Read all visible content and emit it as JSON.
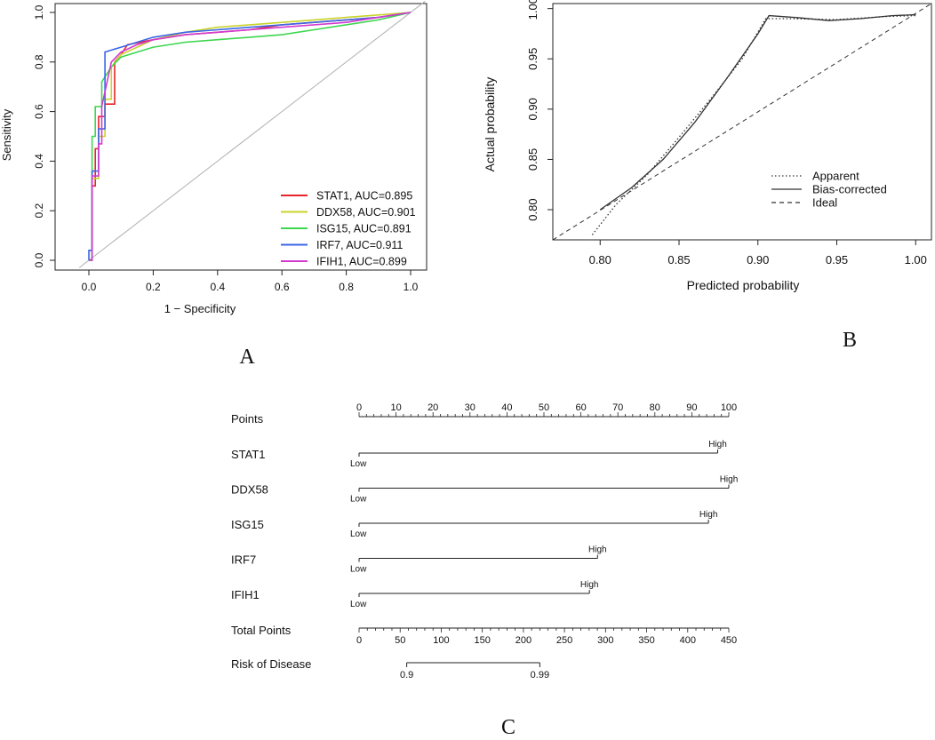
{
  "chart_data": [
    {
      "panel": "A",
      "type": "line",
      "title": "",
      "xlabel": "1 − Specificity",
      "ylabel": "Sensitivity",
      "xlim": [
        -0.05,
        1.05
      ],
      "ylim": [
        0,
        1.0
      ],
      "xticks": [
        "0.0",
        "0.2",
        "0.4",
        "0.6",
        "0.8",
        "1.0"
      ],
      "yticks": [
        "0.0",
        "0.2",
        "0.4",
        "0.6",
        "0.8",
        "1.0"
      ],
      "legend_position": "bottom-right",
      "reference_line": "diagonal",
      "series": [
        {
          "name": "STAT1, AUC=0.895",
          "color": "#e8242b",
          "x": [
            0,
            0.01,
            0.01,
            0.02,
            0.02,
            0.03,
            0.03,
            0.05,
            0.05,
            0.08,
            0.08,
            0.1,
            0.12,
            0.2,
            0.3,
            0.4,
            0.5,
            0.6,
            0.7,
            0.8,
            0.9,
            1.0
          ],
          "y": [
            0,
            0,
            0.3,
            0.3,
            0.45,
            0.45,
            0.58,
            0.58,
            0.63,
            0.63,
            0.8,
            0.83,
            0.87,
            0.89,
            0.91,
            0.92,
            0.93,
            0.95,
            0.96,
            0.97,
            0.98,
            1.0
          ]
        },
        {
          "name": "DDX58, AUC=0.901",
          "color": "#c8d42a",
          "x": [
            0,
            0.01,
            0.01,
            0.03,
            0.03,
            0.05,
            0.05,
            0.07,
            0.07,
            0.1,
            0.15,
            0.2,
            0.3,
            0.4,
            0.5,
            0.6,
            0.7,
            0.8,
            0.9,
            1.0
          ],
          "y": [
            0,
            0,
            0.33,
            0.33,
            0.5,
            0.5,
            0.65,
            0.65,
            0.78,
            0.83,
            0.86,
            0.89,
            0.92,
            0.94,
            0.95,
            0.96,
            0.97,
            0.98,
            0.99,
            1.0
          ]
        },
        {
          "name": "ISG15, AUC=0.891",
          "color": "#3dd64f",
          "x": [
            0,
            0.01,
            0.01,
            0.02,
            0.02,
            0.04,
            0.04,
            0.07,
            0.1,
            0.15,
            0.2,
            0.3,
            0.4,
            0.5,
            0.6,
            0.7,
            0.8,
            0.9,
            1.0
          ],
          "y": [
            0,
            0,
            0.5,
            0.5,
            0.62,
            0.62,
            0.72,
            0.78,
            0.82,
            0.84,
            0.86,
            0.88,
            0.89,
            0.9,
            0.91,
            0.93,
            0.95,
            0.97,
            1.0
          ]
        },
        {
          "name": "IRF7, AUC=0.911",
          "color": "#3a66e8",
          "x": [
            0,
            0.0,
            0.01,
            0.01,
            0.03,
            0.03,
            0.05,
            0.05,
            0.1,
            0.15,
            0.2,
            0.3,
            0.4,
            0.5,
            0.6,
            0.7,
            0.8,
            0.9,
            1.0
          ],
          "y": [
            0,
            0.04,
            0.04,
            0.36,
            0.36,
            0.53,
            0.53,
            0.84,
            0.86,
            0.88,
            0.9,
            0.92,
            0.93,
            0.94,
            0.95,
            0.96,
            0.97,
            0.98,
            1.0
          ]
        },
        {
          "name": "IFIH1, AUC=0.899",
          "color": "#d23ad0",
          "x": [
            0,
            0.01,
            0.01,
            0.03,
            0.03,
            0.04,
            0.04,
            0.07,
            0.1,
            0.15,
            0.2,
            0.3,
            0.4,
            0.5,
            0.6,
            0.7,
            0.8,
            0.9,
            1.0
          ],
          "y": [
            0,
            0,
            0.34,
            0.34,
            0.47,
            0.47,
            0.62,
            0.8,
            0.84,
            0.87,
            0.89,
            0.91,
            0.92,
            0.93,
            0.94,
            0.95,
            0.96,
            0.98,
            1.0
          ]
        }
      ]
    },
    {
      "panel": "B",
      "type": "line",
      "title": "",
      "xlabel": "Predicted probability",
      "ylabel": "Actual probability",
      "xlim": [
        0.77,
        1.01
      ],
      "ylim": [
        0.77,
        1.005
      ],
      "xticks": [
        "0.80",
        "0.85",
        "0.90",
        "0.95",
        "1.00"
      ],
      "yticks": [
        "0.80",
        "0.85",
        "0.90",
        "0.95",
        "1.00"
      ],
      "legend_position": "bottom-right",
      "series": [
        {
          "name": "Apparent",
          "style": "dotted",
          "x": [
            0.795,
            0.81,
            0.83,
            0.85,
            0.87,
            0.89,
            0.905,
            0.92,
            0.95,
            0.98,
            1.0
          ],
          "y": [
            0.775,
            0.805,
            0.835,
            0.872,
            0.91,
            0.95,
            0.99,
            0.99,
            0.989,
            0.992,
            0.993
          ]
        },
        {
          "name": "Bias-corrected",
          "style": "solid",
          "x": [
            0.8,
            0.82,
            0.84,
            0.86,
            0.88,
            0.9,
            0.907,
            0.925,
            0.945,
            0.965,
            0.985,
            1.0
          ],
          "y": [
            0.8,
            0.822,
            0.85,
            0.887,
            0.93,
            0.975,
            0.993,
            0.991,
            0.988,
            0.99,
            0.993,
            0.994
          ]
        },
        {
          "name": "Ideal",
          "style": "dashed",
          "x": [
            0.77,
            1.01
          ],
          "y": [
            0.77,
            1.01
          ]
        }
      ]
    },
    {
      "panel": "C",
      "type": "nomogram",
      "axes": [
        {
          "label": "Points",
          "min": 0,
          "max": 100,
          "tick_labels": [
            "0",
            "10",
            "20",
            "30",
            "40",
            "50",
            "60",
            "70",
            "80",
            "90",
            "100"
          ]
        },
        {
          "label": "Total Points",
          "min": 0,
          "max": 450,
          "tick_labels": [
            "0",
            "50",
            "100",
            "150",
            "200",
            "250",
            "300",
            "350",
            "400",
            "450"
          ]
        }
      ],
      "variables": [
        {
          "label": "STAT1",
          "low": "Low",
          "high": "High",
          "points": 97
        },
        {
          "label": "DDX58",
          "low": "Low",
          "high": "High",
          "points": 100
        },
        {
          "label": "ISG15",
          "low": "Low",
          "high": "High",
          "points": 94.5
        },
        {
          "label": "IRF7",
          "low": "Low",
          "high": "High",
          "points": 64.5
        },
        {
          "label": "IFIH1",
          "low": "Low",
          "high": "High",
          "points": 62.3
        }
      ],
      "risk": {
        "label": "Risk of Disease",
        "start_points": 58,
        "end_points": 220,
        "start_label": "0.9",
        "end_label": "0.99"
      }
    }
  ],
  "panel_labels": {
    "a": "A",
    "b": "B",
    "c": "C"
  }
}
